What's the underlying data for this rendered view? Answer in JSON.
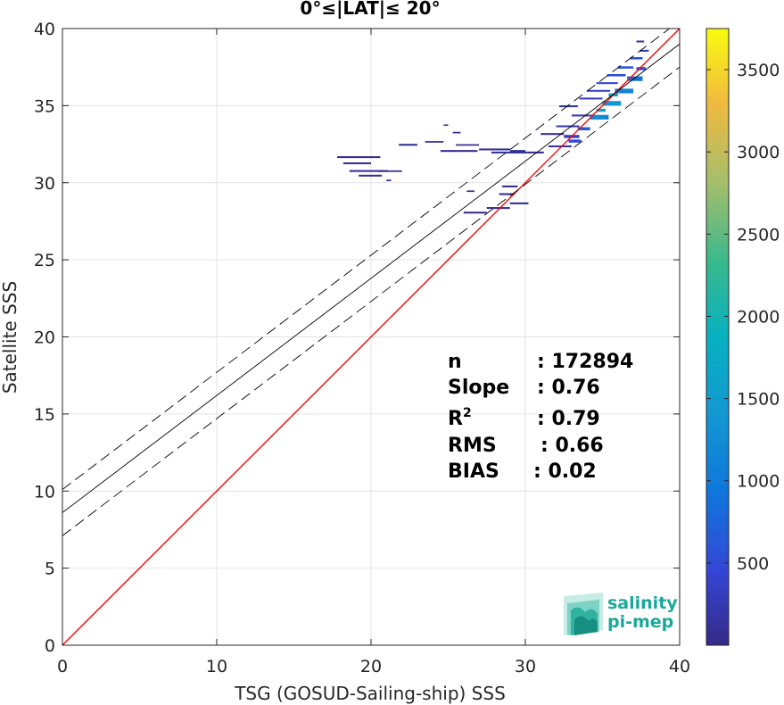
{
  "chart_data": {
    "type": "heatmap",
    "title": "0°≤|LAT|≤ 20°",
    "xlabel": "TSG (GOSUD-Sailing-ship) SSS",
    "ylabel": "Satellite SSS",
    "xlim": [
      0,
      40
    ],
    "ylim": [
      0,
      40
    ],
    "xticks": [
      "0",
      "10",
      "20",
      "30",
      "40"
    ],
    "yticks": [
      "0",
      "5",
      "10",
      "15",
      "20",
      "25",
      "30",
      "35",
      "40"
    ],
    "grid": true,
    "colorbar": {
      "range": [
        0,
        3750
      ],
      "ticks": [
        "500",
        "1000",
        "1500",
        "2000",
        "2500",
        "3000",
        "3500"
      ],
      "colormap": "parula"
    },
    "lines": [
      {
        "role": "identity",
        "slope": 1,
        "intercept": 0,
        "color": "#ff0000",
        "style": "solid"
      },
      {
        "role": "regression",
        "slope": 0.76,
        "intercept": 8.6,
        "color": "#000000",
        "style": "solid"
      },
      {
        "role": "upper-bound",
        "slope": 0.76,
        "intercept": 10.1,
        "color": "#000000",
        "style": "dashed"
      },
      {
        "role": "lower-bound",
        "slope": 0.76,
        "intercept": 7.1,
        "color": "#000000",
        "style": "dashed"
      }
    ],
    "density_cells": [
      [
        17.8,
        31.6,
        2.8,
        0.12,
        80
      ],
      [
        18.2,
        31.2,
        1.8,
        0.12,
        60
      ],
      [
        18.6,
        30.7,
        2.5,
        0.12,
        90
      ],
      [
        19.2,
        30.4,
        1.5,
        0.12,
        60
      ],
      [
        20.5,
        30.7,
        1.5,
        0.1,
        40
      ],
      [
        21.0,
        30.1,
        0.3,
        0.1,
        30
      ],
      [
        21.8,
        32.4,
        1.2,
        0.12,
        60
      ],
      [
        23.5,
        32.6,
        1.2,
        0.1,
        40
      ],
      [
        24.5,
        32.0,
        2.4,
        0.12,
        70
      ],
      [
        25.5,
        32.4,
        1.5,
        0.1,
        50
      ],
      [
        27.0,
        32.1,
        2.0,
        0.12,
        80
      ],
      [
        27.8,
        31.9,
        2.5,
        0.12,
        80
      ],
      [
        29.0,
        32.0,
        1.0,
        0.12,
        70
      ],
      [
        25.3,
        33.2,
        0.5,
        0.1,
        30
      ],
      [
        24.7,
        33.7,
        0.3,
        0.08,
        30
      ],
      [
        26.0,
        28.0,
        1.5,
        0.12,
        60
      ],
      [
        27.5,
        28.3,
        1.5,
        0.12,
        60
      ],
      [
        28.3,
        29.2,
        1.0,
        0.12,
        50
      ],
      [
        29.0,
        28.6,
        1.2,
        0.12,
        60
      ],
      [
        28.5,
        29.7,
        1.0,
        0.12,
        50
      ],
      [
        26.2,
        29.4,
        0.5,
        0.1,
        30
      ],
      [
        30.2,
        31.9,
        1.0,
        0.12,
        60
      ],
      [
        31.0,
        33.1,
        1.5,
        0.12,
        150
      ],
      [
        31.5,
        32.3,
        1.5,
        0.12,
        200
      ],
      [
        32.0,
        33.6,
        1.5,
        0.12,
        220
      ],
      [
        32.5,
        32.9,
        1.0,
        0.2,
        300
      ],
      [
        33.0,
        34.3,
        1.5,
        0.12,
        250
      ],
      [
        32.2,
        34.9,
        1.2,
        0.12,
        180
      ],
      [
        33.5,
        35.4,
        1.5,
        0.12,
        300
      ],
      [
        34.0,
        35.9,
        1.5,
        0.12,
        400
      ],
      [
        34.6,
        36.4,
        1.4,
        0.12,
        450
      ],
      [
        35.3,
        36.9,
        1.2,
        0.15,
        500
      ],
      [
        36.0,
        37.4,
        1.0,
        0.15,
        600
      ],
      [
        36.8,
        38.0,
        0.8,
        0.15,
        550
      ],
      [
        37.4,
        38.5,
        0.6,
        0.12,
        300
      ],
      [
        37.2,
        39.1,
        0.5,
        0.12,
        200
      ],
      [
        34.2,
        34.1,
        1.2,
        0.3,
        1200
      ],
      [
        35.0,
        35.0,
        1.2,
        0.3,
        1400
      ],
      [
        35.8,
        35.8,
        1.2,
        0.3,
        1100
      ],
      [
        36.6,
        36.6,
        1.0,
        0.3,
        900
      ],
      [
        33.4,
        33.4,
        0.8,
        0.2,
        700
      ],
      [
        32.8,
        32.6,
        0.8,
        0.2,
        500
      ],
      [
        37.2,
        37.3,
        0.6,
        0.2,
        500
      ],
      [
        34.6,
        34.6,
        0.6,
        0.2,
        1700
      ],
      [
        35.4,
        35.6,
        0.6,
        0.2,
        1500
      ]
    ]
  },
  "stats": [
    {
      "label": "n",
      "value": ": 172894"
    },
    {
      "label": "Slope",
      "value": ": 0.76"
    },
    {
      "label": "R",
      "value": ": 0.79",
      "sup": "2"
    },
    {
      "label": "RMS",
      "value": ": 0.66"
    },
    {
      "label": "BIAS",
      "value": ": 0.02"
    }
  ],
  "logo": {
    "line1": "salinity",
    "line2": "pi-mep",
    "color": "#1aa89a"
  }
}
